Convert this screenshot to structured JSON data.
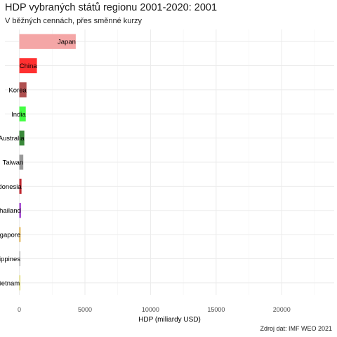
{
  "header": {
    "title": "HDP vybraných států regionu 2001-2020: 2001",
    "subtitle": "V běžných cennách, přes směnné kurzy",
    "caption": "Zdroj dat: IMF WEO 2021"
  },
  "chart_data": {
    "type": "bar",
    "orientation": "horizontal",
    "title": "HDP vybraných států regionu 2001-2020: 2001",
    "subtitle": "V běžných cennách, přes směnné kurzy",
    "xlabel": "HDP (miliardy USD)",
    "ylabel": "",
    "caption": "Zdroj dat: IMF WEO 2021",
    "xlim": [
      -1100,
      24000
    ],
    "xticks": [
      0,
      5000,
      10000,
      15000,
      20000
    ],
    "xtick_labels": [
      "0",
      "5000",
      "10000",
      "15000",
      "20000"
    ],
    "grid": true,
    "categories": [
      "Japan",
      "China",
      "Korea",
      "India",
      "Australia",
      "Taiwan",
      "Indonesia",
      "Thailand",
      "Singapore",
      "Philippines",
      "Vietnam"
    ],
    "values": [
      4300,
      1340,
      545,
      490,
      380,
      300,
      165,
      120,
      90,
      80,
      35
    ],
    "colors": [
      "#f4a6a6",
      "#ff3030",
      "#b05050",
      "#44ff44",
      "#3a8a3a",
      "#999999",
      "#c02830",
      "#9932cc",
      "#dda530",
      "#bbbbbb",
      "#e0dc70"
    ]
  }
}
